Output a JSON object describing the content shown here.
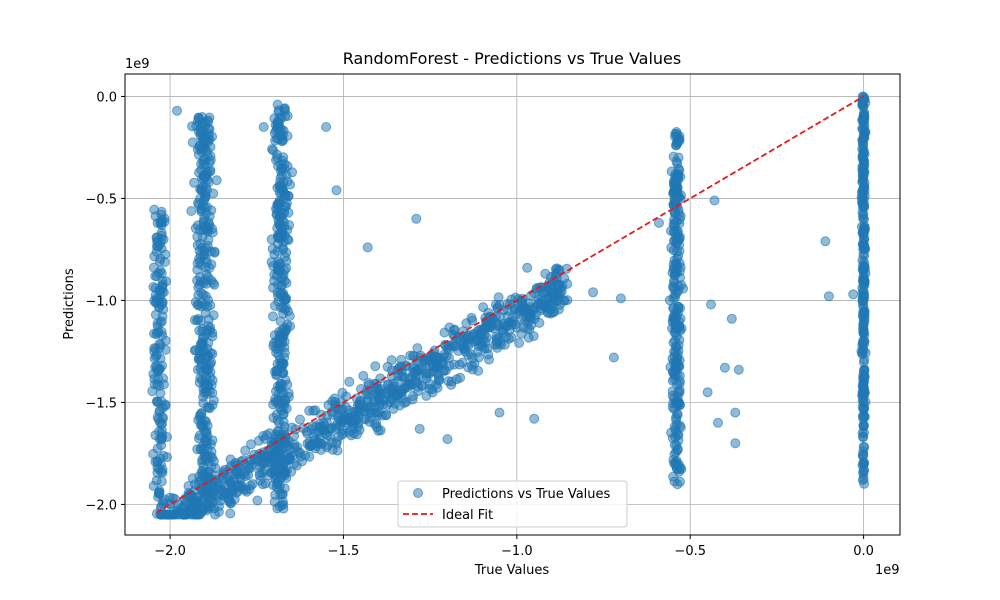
{
  "chart_data": {
    "type": "scatter",
    "title": "RandomForest - Predictions vs True Values",
    "xlabel": "True Values",
    "ylabel": "Predictions",
    "x_offset_label": "1e9",
    "y_offset_label": "1e9",
    "xlim": [
      -2.13,
      0.105
    ],
    "ylim": [
      -2.15,
      0.11
    ],
    "x_ticks": [
      -2.0,
      -1.5,
      -1.0,
      -0.5,
      0.0
    ],
    "x_tick_labels": [
      "−2.0",
      "−1.5",
      "−1.0",
      "−0.5",
      "0.0"
    ],
    "y_ticks": [
      0.0,
      -0.5,
      -1.0,
      -1.5,
      -2.0
    ],
    "y_tick_labels": [
      "0.0",
      "−0.5",
      "−1.0",
      "−1.5",
      "−2.0"
    ],
    "grid": true,
    "legend_position": "lower-center",
    "series": [
      {
        "name": "Predictions vs True Values",
        "kind": "scatter",
        "color": "#1f77b4",
        "alpha": 0.5,
        "clusters": [
          {
            "x_center": -2.03,
            "x_spread": 0.015,
            "y_min": -2.05,
            "y_max": -0.55,
            "count": 160
          },
          {
            "x_center": -1.9,
            "x_spread": 0.025,
            "y_min": -2.0,
            "y_max": -0.1,
            "count": 320
          },
          {
            "x_center": -1.68,
            "x_spread": 0.02,
            "y_min": -2.05,
            "y_max": -0.05,
            "count": 320
          },
          {
            "x_center": -0.54,
            "x_spread": 0.012,
            "y_min": -1.98,
            "y_max": -0.15,
            "count": 260
          },
          {
            "x_center": 0.0,
            "x_spread": 0.004,
            "y_min": -1.9,
            "y_max": 0.0,
            "count": 260
          }
        ],
        "band": {
          "x_min": -2.03,
          "x_max": -0.85,
          "spread": 0.22,
          "count": 900
        },
        "outliers": [
          [
            -1.98,
            -0.07
          ],
          [
            -1.69,
            -0.04
          ],
          [
            -1.73,
            -0.15
          ],
          [
            -1.55,
            -0.15
          ],
          [
            -1.52,
            -0.46
          ],
          [
            -1.43,
            -0.74
          ],
          [
            -1.29,
            -0.6
          ],
          [
            -0.97,
            -0.84
          ],
          [
            -0.88,
            -1.0
          ],
          [
            -0.78,
            -0.96
          ],
          [
            -0.7,
            -0.99
          ],
          [
            -0.72,
            -1.28
          ],
          [
            -0.59,
            -0.62
          ],
          [
            -0.43,
            -0.51
          ],
          [
            -0.44,
            -1.02
          ],
          [
            -0.38,
            -1.09
          ],
          [
            -0.36,
            -1.34
          ],
          [
            -0.37,
            -1.55
          ],
          [
            -0.37,
            -1.7
          ],
          [
            -0.11,
            -0.71
          ],
          [
            -0.1,
            -0.98
          ],
          [
            -0.03,
            -0.97
          ],
          [
            -0.55,
            -1.35
          ],
          [
            -0.45,
            -1.45
          ],
          [
            -1.05,
            -1.55
          ],
          [
            -0.95,
            -1.58
          ],
          [
            -1.2,
            -1.68
          ],
          [
            -1.28,
            -1.63
          ],
          [
            -0.42,
            -1.6
          ],
          [
            -0.4,
            -1.33
          ]
        ]
      },
      {
        "name": "Ideal Fit",
        "kind": "line",
        "color": "#e41a1c",
        "dash": "dashed",
        "x": [
          -2.04,
          0.0
        ],
        "y": [
          -2.04,
          0.0
        ]
      }
    ]
  }
}
